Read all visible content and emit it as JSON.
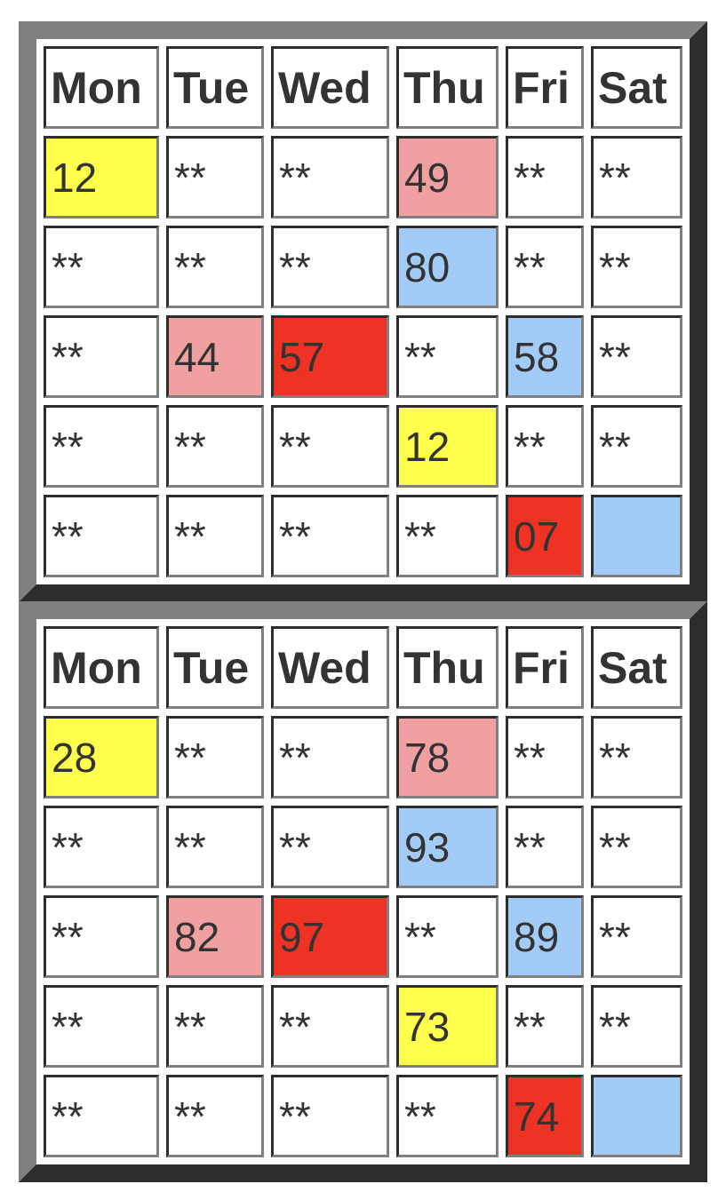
{
  "colors": {
    "yellow": "#ffff4d",
    "pink": "#f0a0a0",
    "red": "#ee3324",
    "blue": "#a3cbf7",
    "white": "#ffffff"
  },
  "tables": [
    {
      "headers": [
        "Mon",
        "Tue",
        "Wed",
        "Thu",
        "Fri",
        "Sat"
      ],
      "rows": [
        [
          {
            "text": "12",
            "color": "yellow"
          },
          {
            "text": "**"
          },
          {
            "text": "**"
          },
          {
            "text": "49",
            "color": "pink"
          },
          {
            "text": "**"
          },
          {
            "text": "**"
          }
        ],
        [
          {
            "text": "**"
          },
          {
            "text": "**"
          },
          {
            "text": "**"
          },
          {
            "text": "80",
            "color": "blue"
          },
          {
            "text": "**"
          },
          {
            "text": "**"
          }
        ],
        [
          {
            "text": "**"
          },
          {
            "text": "44",
            "color": "pink"
          },
          {
            "text": "57",
            "color": "red"
          },
          {
            "text": "**"
          },
          {
            "text": "58",
            "color": "blue"
          },
          {
            "text": "**"
          }
        ],
        [
          {
            "text": "**"
          },
          {
            "text": "**"
          },
          {
            "text": "**"
          },
          {
            "text": "12",
            "color": "yellow"
          },
          {
            "text": "**"
          },
          {
            "text": "**"
          }
        ],
        [
          {
            "text": "**"
          },
          {
            "text": "**"
          },
          {
            "text": "**"
          },
          {
            "text": "**"
          },
          {
            "text": "07",
            "color": "red"
          },
          {
            "text": "",
            "color": "blue"
          }
        ]
      ]
    },
    {
      "headers": [
        "Mon",
        "Tue",
        "Wed",
        "Thu",
        "Fri",
        "Sat"
      ],
      "rows": [
        [
          {
            "text": "28",
            "color": "yellow"
          },
          {
            "text": "**"
          },
          {
            "text": "**"
          },
          {
            "text": "78",
            "color": "pink"
          },
          {
            "text": "**"
          },
          {
            "text": "**"
          }
        ],
        [
          {
            "text": "**"
          },
          {
            "text": "**"
          },
          {
            "text": "**"
          },
          {
            "text": "93",
            "color": "blue"
          },
          {
            "text": "**"
          },
          {
            "text": "**"
          }
        ],
        [
          {
            "text": "**"
          },
          {
            "text": "82",
            "color": "pink"
          },
          {
            "text": "97",
            "color": "red"
          },
          {
            "text": "**"
          },
          {
            "text": "89",
            "color": "blue"
          },
          {
            "text": "**"
          }
        ],
        [
          {
            "text": "**"
          },
          {
            "text": "**"
          },
          {
            "text": "**"
          },
          {
            "text": "73",
            "color": "yellow"
          },
          {
            "text": "**"
          },
          {
            "text": "**"
          }
        ],
        [
          {
            "text": "**"
          },
          {
            "text": "**"
          },
          {
            "text": "**"
          },
          {
            "text": "**"
          },
          {
            "text": "74",
            "color": "red"
          },
          {
            "text": "",
            "color": "blue"
          }
        ]
      ]
    }
  ]
}
